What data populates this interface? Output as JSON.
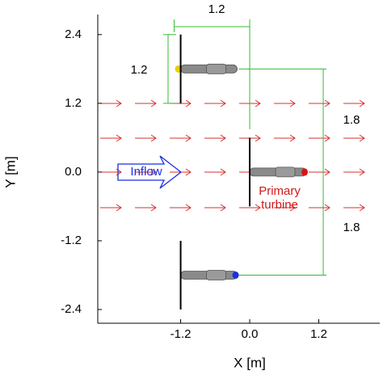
{
  "chart_data": {
    "type": "turbine-layout",
    "xlabel": "X [m]",
    "ylabel": "Y [m]",
    "xlim": [
      -2.64,
      2.26
    ],
    "ylim": [
      -2.64,
      2.75
    ],
    "xticks": [
      -1.2,
      {
        "value": 0,
        "label": "0.0"
      },
      1.2
    ],
    "yticks": [
      2.4,
      1.2,
      {
        "value": 0,
        "label": "0.0"
      },
      -1.2,
      -2.4
    ],
    "turbines": [
      {
        "x": -1.2,
        "y": 1.8,
        "color": "#e6d200"
      },
      {
        "x": 0,
        "y": 0,
        "color": "#e01010",
        "label": "Primary\nturbine"
      },
      {
        "x": -1.2,
        "y": -1.8,
        "color": "#1a2fe0"
      }
    ],
    "dimensions": [
      {
        "value": 1.2,
        "direction": "x"
      },
      {
        "value": 1.2,
        "direction": "y"
      },
      {
        "value": 1.8,
        "direction": "y"
      },
      {
        "value": 1.8,
        "direction": "y"
      }
    ],
    "inflow_label": "Inflow",
    "dimension_color": "#33bb33",
    "flow_color": "#d83030"
  }
}
